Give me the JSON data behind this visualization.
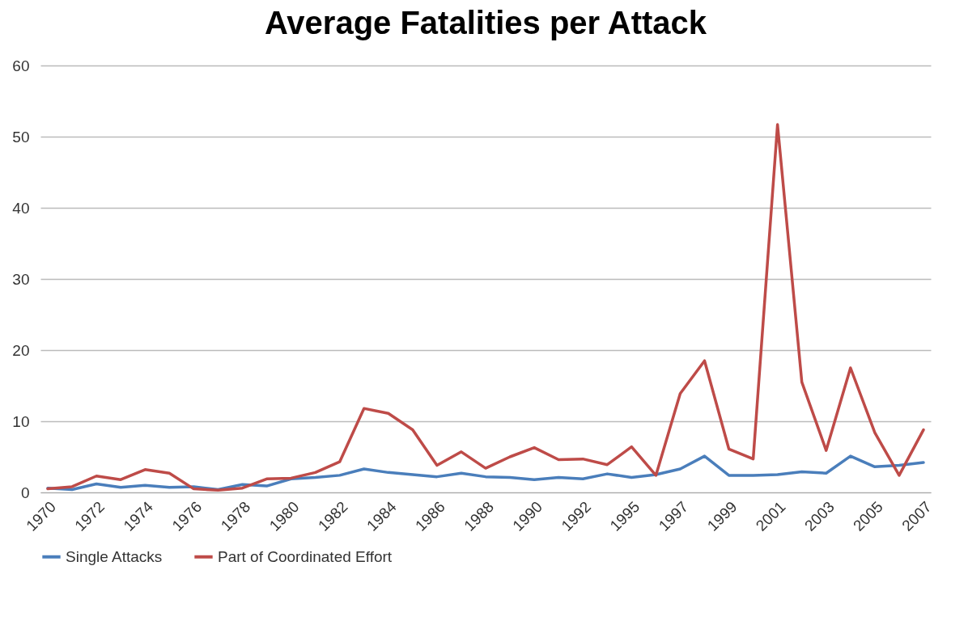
{
  "chart_data": {
    "type": "line",
    "title": "Average Fatalities per Attack",
    "categories": [
      "1970",
      null,
      "1972",
      null,
      "1974",
      null,
      "1976",
      null,
      "1978",
      null,
      "1980",
      null,
      "1982",
      null,
      "1984",
      null,
      "1986",
      null,
      "1988",
      null,
      "1990",
      null,
      "1992",
      null,
      "1995",
      null,
      "1997",
      null,
      "1999",
      null,
      "2001",
      null,
      "2003",
      null,
      "2005",
      null,
      "2007"
    ],
    "series": [
      {
        "name": "Single Attacks",
        "color": "#4a7ebb",
        "values": [
          0.6,
          0.4,
          1.2,
          0.7,
          1.0,
          0.7,
          0.8,
          0.4,
          1.1,
          0.9,
          1.9,
          2.1,
          2.4,
          3.3,
          2.8,
          2.5,
          2.2,
          2.7,
          2.2,
          2.1,
          1.8,
          2.1,
          1.9,
          2.6,
          2.1,
          2.5,
          3.3,
          5.1,
          2.4,
          2.4,
          2.5,
          2.9,
          2.7,
          5.1,
          3.6,
          3.8,
          4.2
        ]
      },
      {
        "name": "Part of Coordinated Effort",
        "color": "#be4b48",
        "values": [
          0.5,
          0.8,
          2.3,
          1.8,
          3.2,
          2.7,
          0.5,
          0.3,
          0.6,
          1.9,
          2.0,
          2.8,
          4.3,
          11.8,
          11.1,
          8.8,
          3.8,
          5.7,
          3.4,
          5.0,
          6.3,
          4.6,
          4.7,
          3.9,
          6.4,
          2.4,
          13.9,
          18.5,
          6.1,
          4.7,
          51.7,
          15.5,
          5.9,
          17.5,
          8.4,
          2.4,
          8.8
        ]
      }
    ],
    "ylim": [
      0,
      60
    ],
    "yticks": [
      0,
      10,
      20,
      30,
      40,
      50,
      60
    ],
    "grid": "y",
    "legend": "bottom",
    "marker": "none",
    "line_style": "solid"
  }
}
